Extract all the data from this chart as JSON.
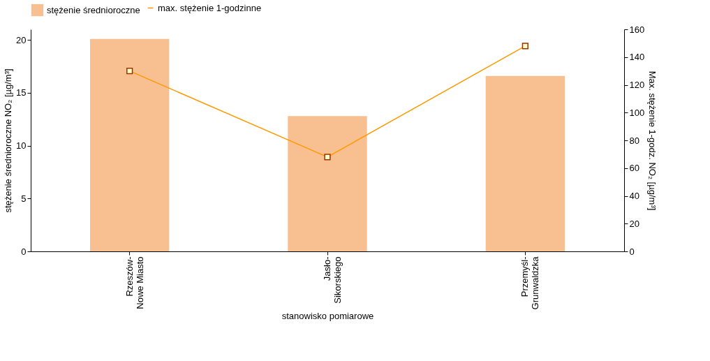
{
  "chart_data": {
    "type": "bar",
    "categories": [
      "Rzeszów-\nNowe Miasto",
      "Jasło-\nSikorskiego",
      "Przemyśl-\nGrunwaldzka"
    ],
    "series": [
      {
        "name": "stężenie średnioroczne",
        "color": "#f8c090",
        "values": [
          20.1,
          12.8,
          16.6
        ]
      },
      {
        "name": "max. stężenie 1-godzinne",
        "type": "line",
        "axis": "y2",
        "color": "#ff9900",
        "marker": "square",
        "values": [
          130,
          68,
          148
        ]
      }
    ],
    "xlabel": "stanowisko pomiarowe",
    "ylabel": "stężenie średnioroczne NO₂ [µg/m³]",
    "y2label": "Max. stężenie 1-godz. NO₂ [µg/m³]",
    "ylim": [
      0,
      21
    ],
    "yticks": [
      0,
      5,
      10,
      15,
      20
    ],
    "y2lim": [
      0,
      160
    ],
    "y2ticks": [
      0,
      20,
      40,
      60,
      80,
      100,
      120,
      140,
      160
    ],
    "legend": "top",
    "grid": false
  }
}
